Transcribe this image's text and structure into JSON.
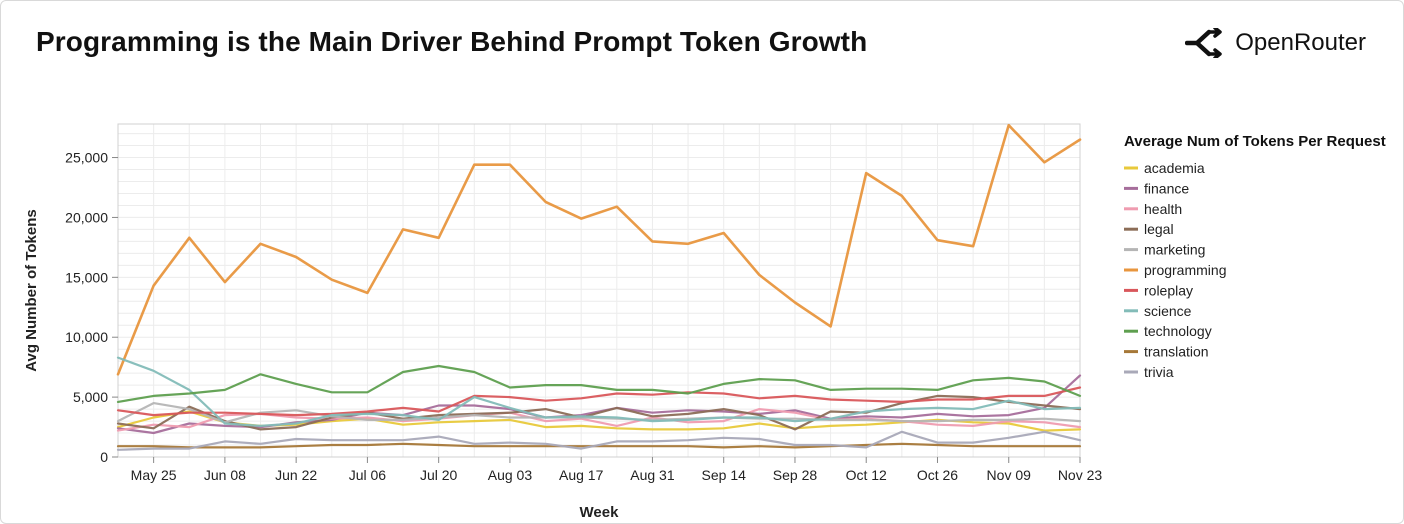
{
  "title": "Programming is the Main Driver Behind Prompt Token Growth",
  "brand": {
    "name": "OpenRouter",
    "icon": "openrouter-logo-icon"
  },
  "chart_data": {
    "type": "line",
    "xlabel": "Week",
    "ylabel": "Avg Number of Tokens",
    "ylim": [
      0,
      27800
    ],
    "yticks": [
      0,
      5000,
      10000,
      15000,
      20000,
      25000
    ],
    "ytick_labels": [
      "0",
      "5,000",
      "10,000",
      "15,000",
      "20,000",
      "25,000"
    ],
    "grid": true,
    "legend_title": "Average Num of Tokens Per Request",
    "legend_position": "right",
    "x": [
      "May 18",
      "May 25",
      "Jun 01",
      "Jun 08",
      "Jun 15",
      "Jun 22",
      "Jun 29",
      "Jul 06",
      "Jul 13",
      "Jul 20",
      "Jul 27",
      "Aug 03",
      "Aug 10",
      "Aug 17",
      "Aug 24",
      "Aug 31",
      "Sep 07",
      "Sep 14",
      "Sep 21",
      "Sep 28",
      "Oct 05",
      "Oct 12",
      "Oct 19",
      "Oct 26",
      "Nov 02",
      "Nov 09",
      "Nov 16",
      "Nov 23"
    ],
    "x_tick_labels": [
      "May 25",
      "Jun 08",
      "Jun 22",
      "Jul 06",
      "Jul 20",
      "Aug 03",
      "Aug 17",
      "Aug 31",
      "Sep 14",
      "Sep 28",
      "Oct 12",
      "Oct 26",
      "Nov 09",
      "Nov 23"
    ],
    "series": [
      {
        "name": "academia",
        "color": "#e8c93b",
        "values": [
          2500,
          3300,
          3800,
          2900,
          2600,
          2700,
          3000,
          3200,
          2700,
          2900,
          3000,
          3100,
          2500,
          2600,
          2400,
          2300,
          2300,
          2400,
          2800,
          2400,
          2600,
          2700,
          2900,
          3100,
          2900,
          2800,
          2200,
          2300
        ]
      },
      {
        "name": "finance",
        "color": "#a66e9b",
        "values": [
          2400,
          2000,
          2800,
          2600,
          2500,
          2900,
          3100,
          3700,
          3500,
          4300,
          4300,
          4000,
          3300,
          3500,
          4100,
          3700,
          3900,
          3800,
          3600,
          3900,
          3200,
          3400,
          3300,
          3600,
          3400,
          3500,
          4100,
          6800
        ]
      },
      {
        "name": "health",
        "color": "#ef9cb0",
        "values": [
          2200,
          2700,
          2500,
          3500,
          3600,
          3300,
          3200,
          3300,
          3000,
          3200,
          3500,
          3700,
          3000,
          3200,
          2600,
          3300,
          2900,
          3000,
          4000,
          3700,
          3100,
          3200,
          3000,
          2700,
          2600,
          3000,
          2900,
          2500
        ]
      },
      {
        "name": "legal",
        "color": "#8c6d57",
        "values": [
          2800,
          2400,
          4200,
          3000,
          2300,
          2500,
          3300,
          3700,
          3200,
          3500,
          3600,
          3700,
          4000,
          3300,
          4100,
          3400,
          3600,
          4000,
          3500,
          2300,
          3800,
          3700,
          4500,
          5100,
          5000,
          4600,
          4300,
          4000
        ]
      },
      {
        "name": "marketing",
        "color": "#b5b5b5",
        "values": [
          3000,
          4500,
          4000,
          2900,
          3700,
          3900,
          3400,
          3100,
          3100,
          3300,
          3500,
          3300,
          3300,
          3300,
          3200,
          3100,
          3200,
          3300,
          3200,
          3200,
          3100,
          3100,
          3000,
          3000,
          3100,
          3100,
          3200,
          3000
        ]
      },
      {
        "name": "programming",
        "color": "#e8963e",
        "values": [
          6900,
          14300,
          18300,
          14600,
          17800,
          16700,
          14800,
          13700,
          19000,
          18300,
          24400,
          24400,
          21300,
          19900,
          20900,
          18000,
          17800,
          18700,
          15200,
          12900,
          10900,
          23700,
          21800,
          18100,
          17600,
          27700,
          24600,
          26500
        ]
      },
      {
        "name": "roleplay",
        "color": "#d9575b",
        "values": [
          3900,
          3500,
          3700,
          3700,
          3600,
          3500,
          3600,
          3800,
          4100,
          3800,
          5100,
          5000,
          4700,
          4900,
          5300,
          5200,
          5400,
          5300,
          4900,
          5100,
          4800,
          4700,
          4600,
          4800,
          4800,
          5100,
          5100,
          5800
        ]
      },
      {
        "name": "science",
        "color": "#83bcb8",
        "values": [
          8300,
          7200,
          5600,
          2800,
          2600,
          2800,
          3500,
          3600,
          3500,
          3100,
          5000,
          4100,
          3300,
          3400,
          3300,
          3000,
          3100,
          3300,
          3300,
          3000,
          3200,
          3800,
          4000,
          4100,
          4000,
          4700,
          4000,
          4100
        ]
      },
      {
        "name": "technology",
        "color": "#5e9f4f",
        "values": [
          4600,
          5100,
          5300,
          5600,
          6900,
          6100,
          5400,
          5400,
          7100,
          7600,
          7100,
          5800,
          6000,
          6000,
          5600,
          5600,
          5300,
          6100,
          6500,
          6400,
          5600,
          5700,
          5700,
          5600,
          6400,
          6600,
          6300,
          5100
        ]
      },
      {
        "name": "translation",
        "color": "#a67838",
        "values": [
          900,
          900,
          800,
          800,
          800,
          900,
          1000,
          1000,
          1100,
          1000,
          900,
          900,
          900,
          900,
          900,
          900,
          900,
          800,
          900,
          800,
          900,
          1000,
          1100,
          1000,
          900,
          900,
          900,
          900
        ]
      },
      {
        "name": "trivia",
        "color": "#a9a9b8",
        "values": [
          600,
          700,
          700,
          1300,
          1100,
          1500,
          1400,
          1400,
          1400,
          1700,
          1100,
          1200,
          1100,
          700,
          1300,
          1300,
          1400,
          1600,
          1500,
          1000,
          1000,
          800,
          2100,
          1200,
          1200,
          1600,
          2100,
          1400
        ]
      }
    ]
  }
}
